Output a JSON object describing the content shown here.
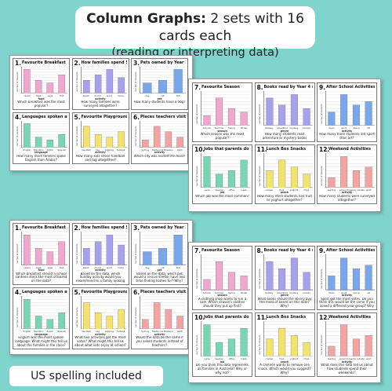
{
  "header": {
    "title_bold": "Column Graphs:",
    "title_rest": " 2 sets with 16 cards each",
    "subtitle": "(reading or interpreting data)"
  },
  "footer": "US spelling included",
  "colors": {
    "background": "#7fd4cd",
    "pink": "#f0a7cf",
    "purple": "#a7a0ec",
    "blue": "#7aa7ea",
    "green": "#78d6b4",
    "yellow": "#f3e26d",
    "red": "#f2a3a3"
  },
  "y_axis_label": "number of students",
  "set_a": {
    "cards": [
      {
        "num": "1.",
        "title": "Favourite Breakfast",
        "cats": [
          "cereal",
          "toast",
          "eggs",
          "fruit"
        ],
        "axis": "food",
        "q": "Which breakfast was the most popular?",
        "color": "pink",
        "vals": [
          9,
          5,
          4,
          7
        ],
        "lines": 4
      },
      {
        "num": "2.",
        "title": "How families spend Sundays",
        "cats": [
          "beach",
          "church",
          "sport",
          "home"
        ],
        "axis": "activity",
        "q": "How many families were surveyed altogether?",
        "color": "purple",
        "vals": [
          5,
          7,
          9,
          6
        ],
        "lines": 4
      },
      {
        "num": "3.",
        "title": "Pets owned by Year 3 girls",
        "cats": [
          "dog",
          "cat",
          "fish"
        ],
        "axis": "pet",
        "q": "How many students have a dog?",
        "color": "blue",
        "vals": [
          4,
          5,
          9
        ],
        "lines": 4
      },
      {
        "num": "4.",
        "title": "Languages spoken at home",
        "cats": [
          "English",
          "Mandarin",
          "Arabic",
          "Spanish"
        ],
        "axis": "language",
        "q": "How many more families spoke English than Arabic?",
        "color": "green",
        "vals": [
          9,
          4,
          3,
          5
        ],
        "lines": 4
      },
      {
        "num": "5.",
        "title": "Favourite Playground Game",
        "cats": [
          "handball",
          "tag",
          "skipping",
          "football"
        ],
        "axis": "activity",
        "q": "How many kids chose handball and tag altogether?",
        "color": "yellow",
        "vals": [
          8,
          5,
          4,
          6
        ],
        "lines": 4
      },
      {
        "num": "6.",
        "title": "Places teachers visit",
        "cats": [
          "Sydney",
          "Melbourne",
          "Brisbane",
          "Perth"
        ],
        "axis": "activity",
        "q": "Which city was visited the most?",
        "color": "red",
        "vals": [
          3,
          8,
          6,
          4
        ],
        "lines": 4
      }
    ]
  },
  "set_b": {
    "cards": [
      {
        "num": "7.",
        "title": "Favourite Season",
        "cats": [
          "Autumn",
          "Summer",
          "Spring",
          "Winter"
        ],
        "axis": "season",
        "q": "Which season was the most popular?",
        "color": "pink",
        "vals": [
          3,
          8,
          5,
          4
        ],
        "lines": 4
      },
      {
        "num": "8.",
        "title": "Books read by Year 4 students",
        "cats": [
          "fantasy",
          "adventure",
          "mystery",
          "comedy"
        ],
        "axis": "genre",
        "q": "How many students read adventure or mystery books altogether?",
        "color": "purple",
        "vals": [
          8,
          6,
          9,
          5
        ],
        "lines": 4
      },
      {
        "num": "9.",
        "title": "After School Activities",
        "cats": [
          "music",
          "sport",
          "dance",
          "art"
        ],
        "axis": "activity",
        "q": "How many more students did sport than art?",
        "color": "blue",
        "vals": [
          4,
          9,
          6,
          7
        ],
        "lines": 4
      },
      {
        "num": "10.",
        "title": "Jobs that parents do",
        "cats": [
          "nurse",
          "teacher",
          "office",
          "trade"
        ],
        "axis": "job",
        "q": "Which job was the most common?",
        "color": "green",
        "vals": [
          9,
          4,
          5,
          8
        ],
        "lines": 4
      },
      {
        "num": "11.",
        "title": "Lunch Box Snacks",
        "cats": [
          "cracker",
          "fruit",
          "yoghurt",
          "chips"
        ],
        "axis": "snack",
        "q": "How many more students had fruit or yoghurt altogether?",
        "color": "yellow",
        "vals": [
          5,
          8,
          6,
          4
        ],
        "lines": 4
      },
      {
        "num": "12.",
        "title": "Weekend Activities",
        "cats": [
          "reading",
          "screen time",
          "play outside",
          "sport"
        ],
        "axis": "activity",
        "q": "How many students were surveyed altogether?",
        "color": "red",
        "vals": [
          3,
          9,
          5,
          6
        ],
        "lines": 4
      }
    ]
  },
  "set_c": {
    "cards": [
      {
        "num": "1.",
        "title": "Favourite Breakfast",
        "cats": [
          "cereal",
          "toast",
          "eggs",
          "fruit"
        ],
        "axis": "food",
        "q": "Which breakfast should a school canteen stock the most of based on the data?",
        "color": "pink",
        "vals": [
          9,
          5,
          4,
          7
        ]
      },
      {
        "num": "2.",
        "title": "How families spend Sundays",
        "cats": [
          "beach",
          "church",
          "sport",
          "home"
        ],
        "axis": "activity",
        "q": "Based on the data, which Sunday activity would you recommend to a family looking for something to do?",
        "color": "purple",
        "vals": [
          5,
          7,
          9,
          6
        ]
      },
      {
        "num": "3.",
        "title": "Pets owned by Year 3 girls",
        "cats": [
          "dog",
          "cat",
          "fish"
        ],
        "axis": "pet",
        "q": "Based on the data, which pet would a rescue shelter have less time finding homes for? Why?",
        "color": "blue",
        "vals": [
          4,
          5,
          9
        ]
      },
      {
        "num": "4.",
        "title": "Languages spoken at home",
        "cats": [
          "English",
          "Mandarin",
          "Arabic",
          "Spanish"
        ],
        "axis": "language",
        "q": "English was the most spoken language. What might this tell us about the families in the class?",
        "color": "green",
        "vals": [
          9,
          4,
          3,
          5
        ]
      },
      {
        "num": "5.",
        "title": "Favourite Playground Game",
        "cats": [
          "handball",
          "tag",
          "skipping",
          "football"
        ],
        "axis": "activity",
        "q": "What two activities got the most votes? What might this tell us about what kids enjoy at school?",
        "color": "yellow",
        "vals": [
          8,
          5,
          4,
          6
        ]
      },
      {
        "num": "6.",
        "title": "Places teachers visit",
        "cats": [
          "Sydney",
          "Melbourne",
          "Brisbane",
          "Perth"
        ],
        "axis": "activity",
        "q": "Would the data be the same if you asked students instead of teachers?",
        "color": "red",
        "vals": [
          3,
          8,
          6,
          4
        ]
      }
    ]
  },
  "set_d": {
    "cards": [
      {
        "num": "7.",
        "title": "Favourite Season",
        "cats": [
          "Autumn",
          "Summer",
          "Spring",
          "Winter"
        ],
        "axis": "season",
        "q": "A clothing shop wants to run a sale. Which season's clothes should they put up first?",
        "color": "pink",
        "vals": [
          3,
          8,
          5,
          4
        ]
      },
      {
        "num": "8.",
        "title": "Books read by Year 4 students",
        "cats": [
          "fantasy",
          "adventure",
          "mystery",
          "comedy"
        ],
        "axis": "genre",
        "q": "What books should the library buy the most of based on this data? Why?",
        "color": "purple",
        "vals": [
          8,
          6,
          9,
          5
        ]
      },
      {
        "num": "9.",
        "title": "After School Activities",
        "cats": [
          "music",
          "sport",
          "dance",
          "art"
        ],
        "axis": "activity",
        "q": "Sport got the most votes. Do you think this would be the same if you asked a different year group? Why or why not?",
        "color": "blue",
        "vals": [
          4,
          9,
          6,
          7
        ]
      },
      {
        "num": "10.",
        "title": "Jobs that parents do",
        "cats": [
          "nurse",
          "teacher",
          "office",
          "trade"
        ],
        "axis": "job",
        "q": "Do you think this data represents all families in Australia? Why or why not?",
        "color": "green",
        "vals": [
          9,
          4,
          5,
          8
        ]
      },
      {
        "num": "11.",
        "title": "Lunch Box Snacks",
        "cats": [
          "cracker",
          "fruit",
          "yoghurt",
          "chips"
        ],
        "axis": "snack",
        "q": "A canteen wants to remove one snack. Which would you suggest? Why?",
        "color": "yellow",
        "vals": [
          5,
          8,
          6,
          4
        ]
      },
      {
        "num": "12.",
        "title": "Weekend Activities",
        "cats": [
          "reading",
          "screen time",
          "play outside",
          "sport"
        ],
        "axis": "activity",
        "q": "What does this data tell us about how students spend their weekends?",
        "color": "red",
        "vals": [
          3,
          9,
          5,
          6
        ]
      }
    ]
  }
}
